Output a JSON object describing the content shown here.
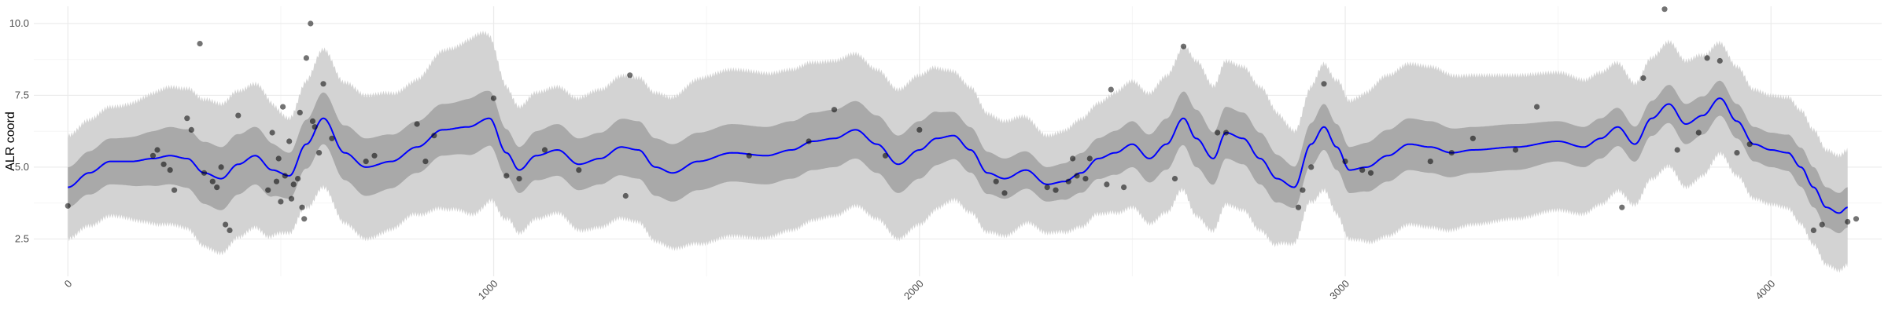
{
  "chart_data": {
    "type": "line",
    "title": "",
    "xlabel": "",
    "ylabel": "ALR coord",
    "xlim": [
      -80,
      4260
    ],
    "ylim": [
      1.2,
      10.6
    ],
    "x_ticks": [
      0,
      1000,
      2000,
      3000,
      4000
    ],
    "x_tick_labels": [
      "0",
      "1000",
      "2000",
      "3000",
      "4000"
    ],
    "y_ticks": [
      2.5,
      5.0,
      7.5,
      10.0
    ],
    "y_tick_labels": [
      "2.5",
      "5.0",
      "7.5",
      "10.0"
    ],
    "grid": true,
    "legend": "none",
    "colors": {
      "mean_line": "#0000ff",
      "inner_band": "#a9a9a9",
      "outer_band": "#d3d3d3",
      "points": "#000000",
      "grid_major": "#ebebeb",
      "grid_minor": "#f5f5f5"
    },
    "series": [
      {
        "kind": "mean",
        "x": [
          0,
          50,
          100,
          150,
          200,
          240,
          280,
          320,
          360,
          400,
          440,
          480,
          520,
          560,
          600,
          650,
          700,
          760,
          820,
          880,
          940,
          990,
          1030,
          1060,
          1100,
          1150,
          1200,
          1250,
          1300,
          1340,
          1380,
          1420,
          1480,
          1560,
          1640,
          1700,
          1750,
          1800,
          1850,
          1900,
          1950,
          2000,
          2040,
          2080,
          2120,
          2160,
          2200,
          2250,
          2300,
          2340,
          2380,
          2420,
          2460,
          2500,
          2540,
          2580,
          2620,
          2650,
          2690,
          2720,
          2760,
          2800,
          2840,
          2880,
          2920,
          2950,
          2980,
          3010,
          3050,
          3100,
          3150,
          3200,
          3250,
          3300,
          3400,
          3500,
          3560,
          3600,
          3640,
          3680,
          3720,
          3760,
          3800,
          3840,
          3880,
          3920,
          3960,
          4000,
          4040,
          4070,
          4100,
          4130,
          4160,
          4180
        ],
        "y": [
          4.3,
          4.8,
          5.2,
          5.2,
          5.3,
          5.4,
          5.3,
          4.8,
          4.6,
          5.1,
          5.4,
          4.9,
          4.7,
          5.8,
          6.7,
          5.5,
          5.0,
          5.2,
          5.7,
          6.3,
          6.4,
          6.7,
          5.5,
          4.9,
          5.4,
          5.6,
          5.1,
          5.3,
          5.7,
          5.6,
          5.0,
          4.8,
          5.2,
          5.5,
          5.4,
          5.6,
          5.9,
          6.0,
          6.3,
          5.8,
          5.1,
          5.6,
          6.0,
          6.1,
          5.6,
          4.8,
          4.6,
          4.9,
          4.4,
          4.5,
          4.8,
          5.3,
          5.5,
          5.8,
          5.3,
          5.8,
          6.7,
          6.0,
          5.3,
          6.2,
          6.0,
          5.3,
          4.6,
          4.3,
          5.8,
          6.4,
          5.7,
          4.9,
          5.0,
          5.4,
          5.8,
          5.7,
          5.5,
          5.6,
          5.7,
          5.9,
          5.7,
          6.0,
          6.4,
          5.8,
          6.7,
          7.2,
          6.5,
          6.8,
          7.4,
          6.6,
          5.8,
          5.6,
          5.5,
          5.0,
          4.3,
          3.6,
          3.4,
          3.6
        ]
      }
    ],
    "band_halfwidth": {
      "x": [
        0,
        100,
        250,
        350,
        450,
        520,
        600,
        700,
        800,
        900,
        960,
        1050,
        1150,
        1250,
        1320,
        1400,
        1500,
        1600,
        1700,
        1800,
        1900,
        2000,
        2100,
        2200,
        2300,
        2400,
        2500,
        2600,
        2650,
        2700,
        2800,
        2900,
        2950,
        3000,
        3100,
        3200,
        3300,
        3400,
        3500,
        3600,
        3700,
        3800,
        3900,
        4000,
        4100,
        4180
      ],
      "outer": [
        1.8,
        1.9,
        2.4,
        2.6,
        2.5,
        2.0,
        2.4,
        2.5,
        2.3,
        2.8,
        3.1,
        2.2,
        2.2,
        2.4,
        2.5,
        2.6,
        2.9,
        2.9,
        2.8,
        2.7,
        2.6,
        2.6,
        2.2,
        2.0,
        1.7,
        1.9,
        2.2,
        2.4,
        2.7,
        2.5,
        2.5,
        1.9,
        2.2,
        2.4,
        2.8,
        2.8,
        2.6,
        2.5,
        2.4,
        2.3,
        2.1,
        2.2,
        1.9,
        1.9,
        2.0,
        2.0
      ],
      "inner": [
        0.7,
        0.8,
        1.0,
        1.1,
        1.0,
        0.8,
        0.9,
        1.0,
        0.9,
        0.9,
        1.0,
        0.8,
        0.9,
        0.9,
        1.0,
        1.0,
        1.0,
        1.0,
        1.0,
        1.0,
        1.0,
        1.0,
        0.8,
        0.7,
        0.6,
        0.7,
        0.8,
        0.9,
        1.0,
        0.9,
        0.9,
        0.7,
        0.8,
        0.8,
        0.9,
        0.9,
        0.8,
        0.8,
        0.7,
        0.7,
        0.6,
        0.7,
        0.6,
        0.6,
        0.7,
        0.7
      ]
    },
    "points": {
      "x": [
        0,
        200,
        210,
        225,
        240,
        250,
        280,
        290,
        310,
        320,
        340,
        350,
        360,
        370,
        380,
        400,
        470,
        480,
        490,
        495,
        500,
        505,
        510,
        520,
        525,
        530,
        540,
        545,
        550,
        555,
        560,
        570,
        575,
        580,
        590,
        600,
        620,
        700,
        720,
        820,
        840,
        860,
        1000,
        1030,
        1060,
        1120,
        1200,
        1310,
        1320,
        1600,
        1740,
        1800,
        1920,
        2000,
        2180,
        2200,
        2300,
        2320,
        2350,
        2360,
        2370,
        2390,
        2400,
        2440,
        2450,
        2480,
        2600,
        2620,
        2700,
        2720,
        2890,
        2900,
        2920,
        2950,
        3000,
        3040,
        3060,
        3200,
        3250,
        3300,
        3400,
        3450,
        3650,
        3700,
        3750,
        3780,
        3830,
        3850,
        3880,
        3920,
        3950,
        4100,
        4120,
        4180,
        4200
      ],
      "y": [
        3.65,
        5.4,
        5.6,
        5.1,
        4.9,
        4.2,
        6.7,
        6.3,
        9.3,
        4.8,
        4.5,
        4.3,
        5.0,
        3.0,
        2.8,
        6.8,
        4.2,
        6.2,
        4.5,
        5.3,
        3.8,
        7.1,
        4.7,
        5.9,
        3.9,
        4.4,
        4.6,
        6.9,
        3.6,
        3.2,
        8.8,
        10.0,
        6.6,
        6.4,
        5.5,
        7.9,
        6.0,
        5.2,
        5.4,
        6.5,
        5.2,
        6.1,
        7.4,
        4.7,
        4.6,
        5.6,
        4.9,
        4.0,
        8.2,
        5.4,
        5.9,
        7.0,
        5.4,
        6.3,
        4.5,
        4.1,
        4.3,
        4.2,
        4.5,
        5.3,
        4.7,
        4.6,
        5.3,
        4.4,
        7.7,
        4.3,
        4.6,
        9.2,
        6.2,
        6.2,
        3.6,
        4.2,
        5.0,
        7.9,
        5.2,
        4.9,
        4.8,
        5.2,
        5.5,
        6.0,
        5.6,
        7.1,
        3.6,
        8.1,
        10.5,
        5.6,
        6.2,
        8.8,
        8.7,
        5.5,
        5.8,
        2.8,
        3.0,
        3.1,
        3.2
      ]
    }
  }
}
